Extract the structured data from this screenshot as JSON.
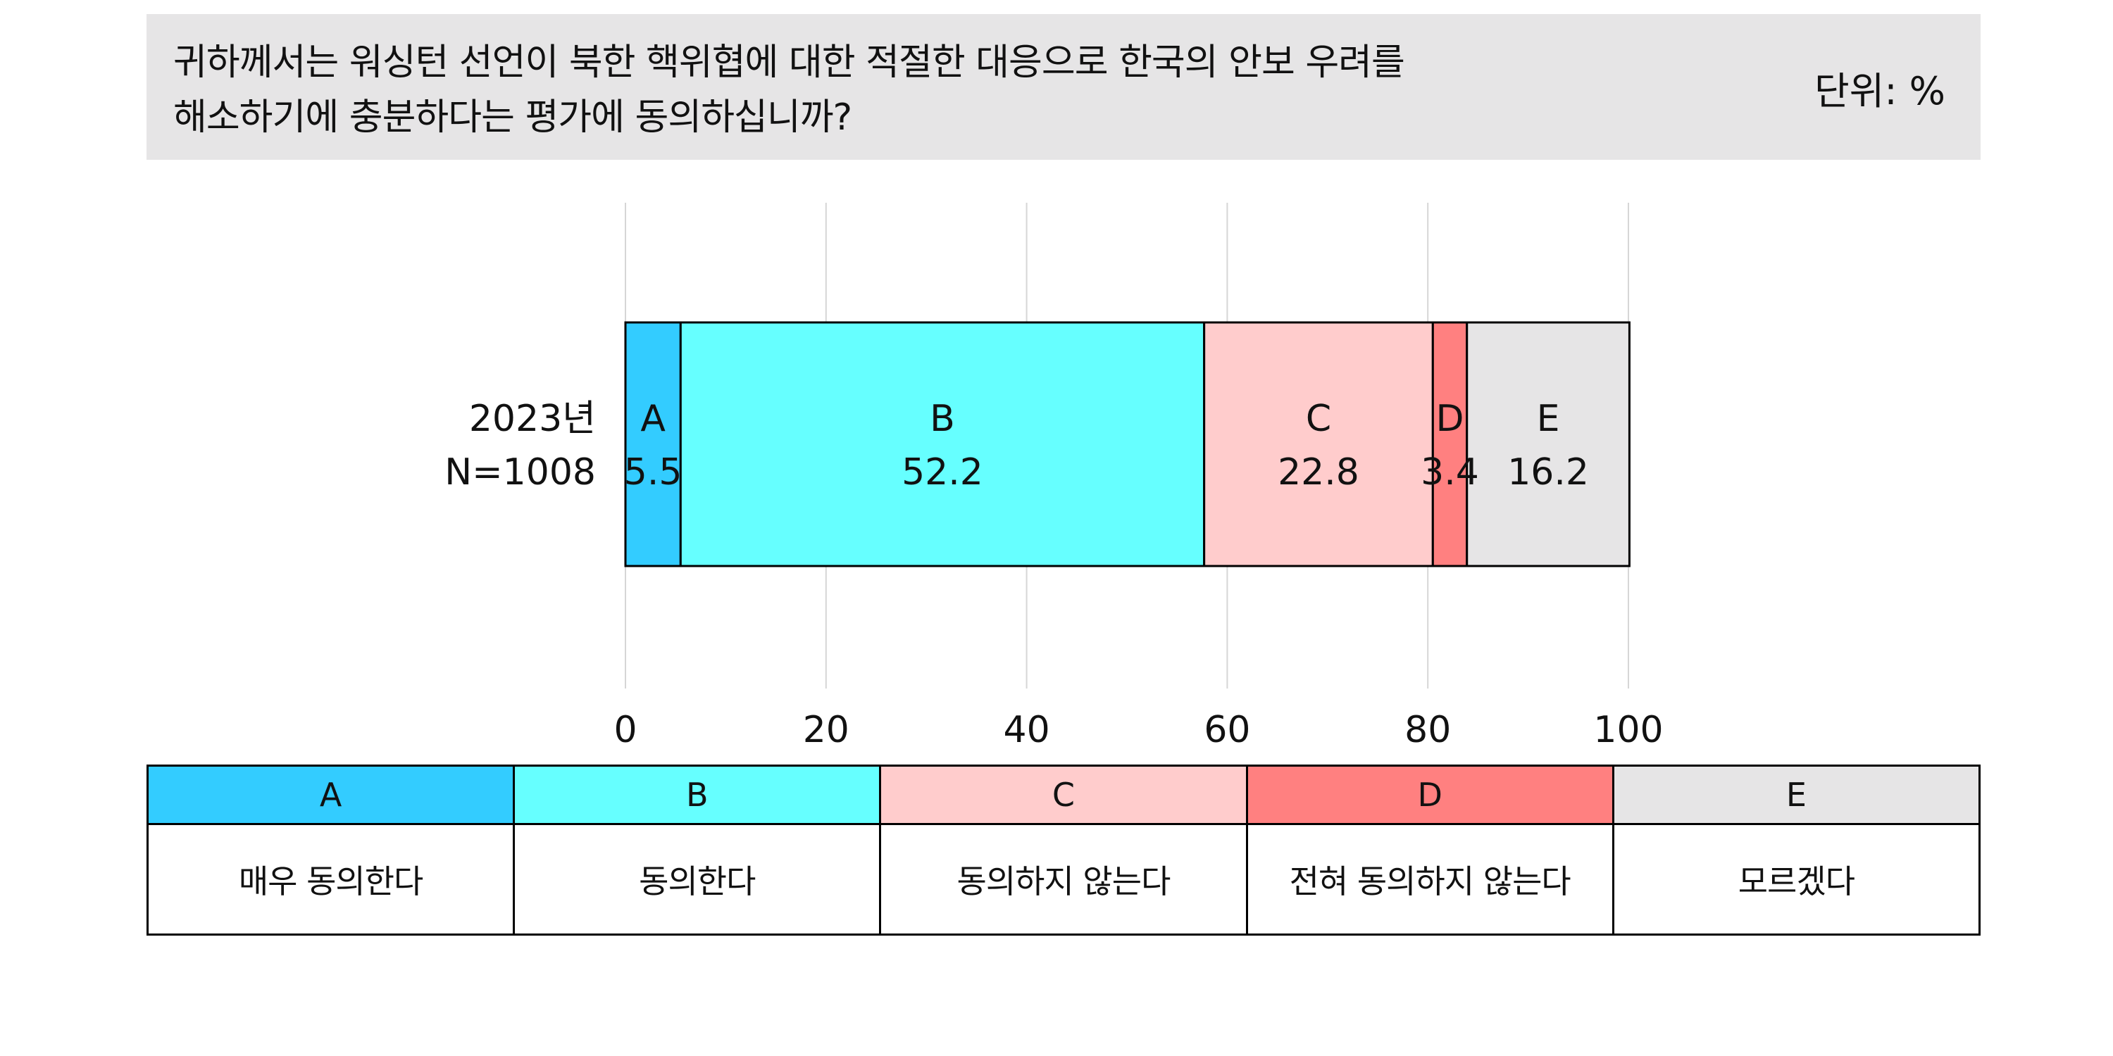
{
  "question": "귀하께서는 워싱턴 선언이 북한 핵위협에 대한 적절한 대응으로 한국의 안보 우려를 해소하기에 충분하다는 평가에 동의하십니까?",
  "question_lines": [
    "귀하께서는 워싱턴 선언이 북한 핵위협에 대한 적절한 대응으로 한국의 안보 우려를",
    "해소하기에 충분하다는 평가에 동의하십니까?"
  ],
  "unit_label": "단위: %",
  "chart_data": {
    "type": "bar",
    "orientation": "horizontal",
    "stacked": true,
    "title": "",
    "xlabel": "",
    "ylabel": "",
    "xlim": [
      0,
      100
    ],
    "x_ticks": [
      0,
      20,
      40,
      60,
      80,
      100
    ],
    "grid": true,
    "categories": [
      "2023년\nN=1008"
    ],
    "category_lines": [
      [
        "2023년",
        "N=1008"
      ]
    ],
    "series": [
      {
        "name": "A",
        "values": [
          5.5
        ],
        "color": "#33ccff"
      },
      {
        "name": "B",
        "values": [
          52.2
        ],
        "color": "#66ffff"
      },
      {
        "name": "C",
        "values": [
          22.8
        ],
        "color": "#ffcccc"
      },
      {
        "name": "D",
        "values": [
          3.4
        ],
        "color": "#ff8080"
      },
      {
        "name": "E",
        "values": [
          16.2
        ],
        "color": "#e6e5e6"
      }
    ]
  },
  "legend": [
    {
      "code": "A",
      "label": "매우 동의한다",
      "color": "#33ccff"
    },
    {
      "code": "B",
      "label": "동의한다",
      "color": "#66ffff"
    },
    {
      "code": "C",
      "label": "동의하지 않는다",
      "color": "#ffcccc"
    },
    {
      "code": "D",
      "label": "전혀 동의하지 않는다",
      "color": "#ff8080"
    },
    {
      "code": "E",
      "label": "모르겠다",
      "color": "#e6e5e6"
    }
  ]
}
